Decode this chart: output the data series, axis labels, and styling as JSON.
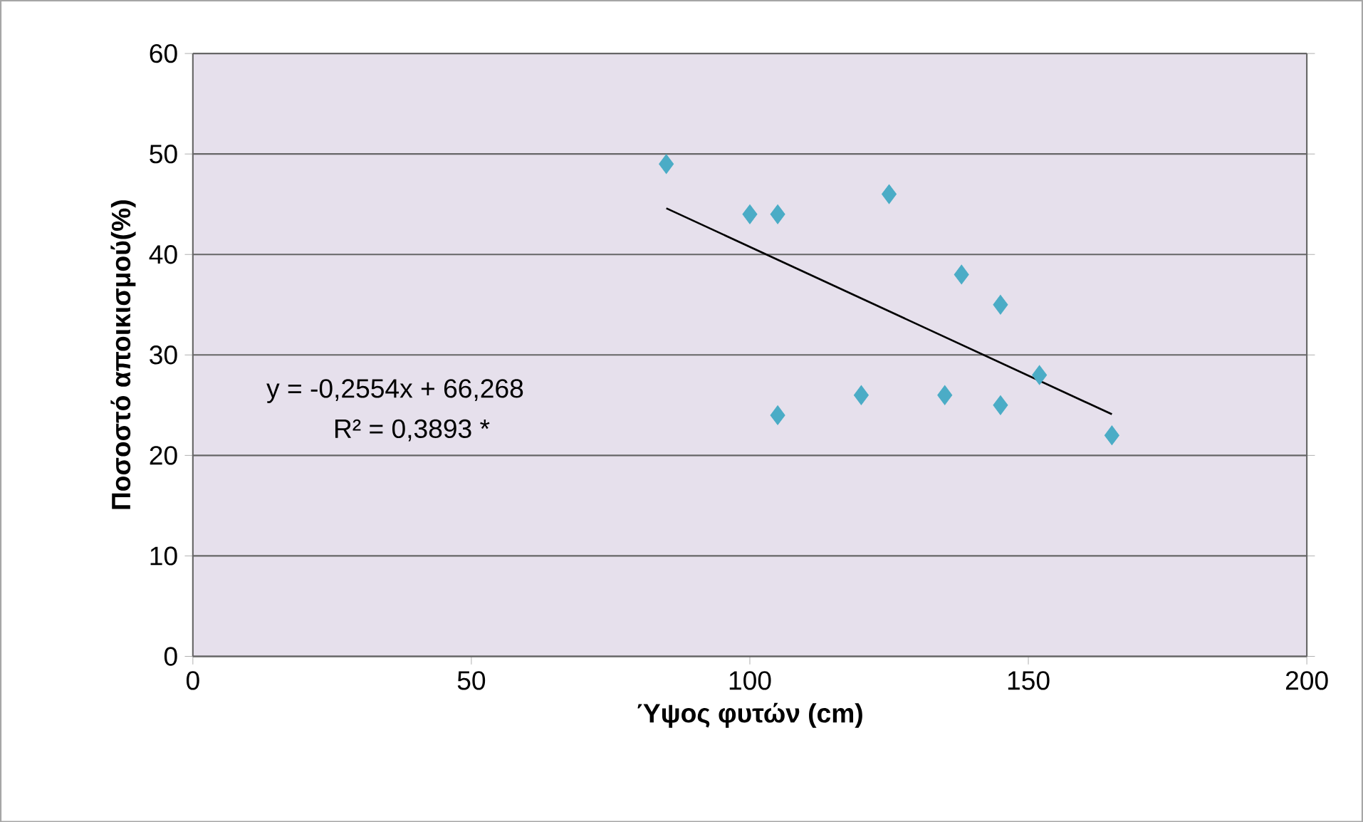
{
  "chart_data": {
    "type": "scatter",
    "xlabel": "Ύψος φυτών (cm)",
    "ylabel": "Ποσοστό αποικισμού(%)",
    "xlim": [
      0,
      200
    ],
    "xticks": [
      0,
      50,
      100,
      150,
      200
    ],
    "ylim": [
      0,
      60
    ],
    "yticks": [
      0,
      10,
      20,
      30,
      40,
      50,
      60
    ],
    "grid": "y",
    "marker": "diamond",
    "series": [
      {
        "color": "#4bacc6",
        "x": [
          85,
          100,
          105,
          125,
          105,
          120,
          138,
          145,
          135,
          145,
          152,
          165
        ],
        "values": [
          49,
          44,
          44,
          46,
          24,
          26,
          38,
          35,
          26,
          25,
          28,
          22
        ]
      },
      {
        "type": "line",
        "color": "#000000",
        "marker": "none",
        "x": [
          85,
          165
        ],
        "values": [
          44.6,
          24.1
        ]
      }
    ],
    "annotations": [
      "y = -0,2554x + 66,268",
      "R² = 0,3893 *"
    ]
  }
}
